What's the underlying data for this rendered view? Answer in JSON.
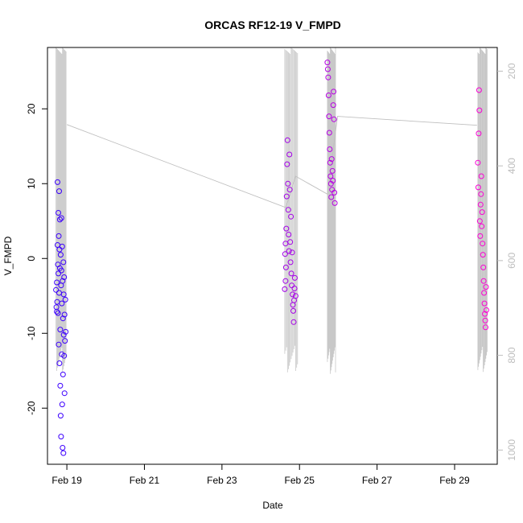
{
  "chart_data": {
    "type": "scatter",
    "title": "ORCAS RF12-19 V_FMPD",
    "xlabel": "Date",
    "ylabel": "V_FMPD",
    "x_range_days_feb": [
      18.5,
      30.1
    ],
    "ylim": [
      -27.5,
      28.2
    ],
    "y_ticks": [
      -20,
      -10,
      0,
      10,
      20
    ],
    "y_tick_labels": [
      "-20",
      "-10",
      "0",
      "10",
      "20"
    ],
    "x_ticks": [
      19,
      21,
      23,
      25,
      27,
      29
    ],
    "x_tick_labels": [
      "Feb 19",
      "Feb 21",
      "Feb 23",
      "Feb 25",
      "Feb 27",
      "Feb 29"
    ],
    "right_axis": {
      "ylim": [
        1030,
        150
      ],
      "ticks": [
        200,
        400,
        600,
        800,
        1000
      ],
      "tick_labels": [
        "200",
        "400",
        "600",
        "800",
        "1000"
      ],
      "color": "#bdbdbd"
    },
    "pressure_line_color": "#c8c8c8",
    "point_color_start": "#3a00ff",
    "point_color_end": "#ff00d4",
    "flights": [
      {
        "t0": 18.72,
        "t1": 18.98,
        "pts": [
          [
            18.72,
            -4.2
          ],
          [
            18.73,
            -6.5
          ],
          [
            18.74,
            -7.1
          ],
          [
            18.74,
            -3.2
          ],
          [
            18.75,
            -5.8
          ],
          [
            18.76,
            1.8
          ],
          [
            18.76,
            10.2
          ],
          [
            18.77,
            -0.8
          ],
          [
            18.77,
            -7.3
          ],
          [
            18.78,
            6.1
          ],
          [
            18.78,
            -2.0
          ],
          [
            18.79,
            3.0
          ],
          [
            18.79,
            -11.5
          ],
          [
            18.8,
            9.0
          ],
          [
            18.8,
            -4.6
          ],
          [
            18.81,
            1.2
          ],
          [
            18.81,
            -14.0
          ],
          [
            18.82,
            5.2
          ],
          [
            18.82,
            -1.3
          ],
          [
            18.83,
            -9.5
          ],
          [
            18.83,
            -17.0
          ],
          [
            18.84,
            0.5
          ],
          [
            18.84,
            -21.0
          ],
          [
            18.85,
            -3.6
          ],
          [
            18.85,
            -23.8
          ],
          [
            18.86,
            5.4
          ],
          [
            18.86,
            -1.6
          ],
          [
            18.87,
            -6.0
          ],
          [
            18.87,
            -12.8
          ],
          [
            18.88,
            1.6
          ],
          [
            18.88,
            -19.5
          ],
          [
            18.89,
            -3.0
          ],
          [
            18.89,
            -25.3
          ],
          [
            18.9,
            -8.0
          ],
          [
            18.9,
            -15.5
          ],
          [
            18.91,
            -0.5
          ],
          [
            18.91,
            -26.0
          ],
          [
            18.92,
            -10.2
          ],
          [
            18.92,
            -4.8
          ],
          [
            18.93,
            -13.0
          ],
          [
            18.93,
            -2.5
          ],
          [
            18.94,
            -18.0
          ],
          [
            18.94,
            -7.5
          ],
          [
            18.95,
            -11.0
          ],
          [
            18.96,
            -5.5
          ],
          [
            18.97,
            -9.8
          ]
        ]
      },
      {
        "t0": 24.62,
        "t1": 24.95,
        "pts": [
          [
            24.62,
            -4.1
          ],
          [
            24.63,
            0.6
          ],
          [
            24.64,
            2.0
          ],
          [
            24.64,
            -3.0
          ],
          [
            24.65,
            -1.2
          ],
          [
            24.66,
            4.0
          ],
          [
            24.67,
            8.3
          ],
          [
            24.68,
            12.6
          ],
          [
            24.69,
            15.8
          ],
          [
            24.7,
            10.0
          ],
          [
            24.71,
            6.5
          ],
          [
            24.72,
            3.2
          ],
          [
            24.73,
            1.0
          ],
          [
            24.74,
            13.9
          ],
          [
            24.75,
            9.2
          ],
          [
            24.76,
            2.2
          ],
          [
            24.77,
            -0.5
          ],
          [
            24.78,
            5.6
          ],
          [
            24.79,
            -2.0
          ],
          [
            24.8,
            -3.6
          ],
          [
            24.81,
            0.8
          ],
          [
            24.82,
            -4.8
          ],
          [
            24.83,
            -6.2
          ],
          [
            24.84,
            -7.0
          ],
          [
            24.85,
            -8.5
          ],
          [
            24.86,
            -5.6
          ],
          [
            24.87,
            -4.0
          ],
          [
            24.88,
            -2.6
          ],
          [
            24.9,
            -5.0
          ]
        ]
      },
      {
        "t0": 25.72,
        "t1": 25.93,
        "pts": [
          [
            25.72,
            26.2
          ],
          [
            25.73,
            25.3
          ],
          [
            25.74,
            24.2
          ],
          [
            25.75,
            21.8
          ],
          [
            25.76,
            19.0
          ],
          [
            25.77,
            16.8
          ],
          [
            25.78,
            14.6
          ],
          [
            25.79,
            12.8
          ],
          [
            25.8,
            11.0
          ],
          [
            25.81,
            10.0
          ],
          [
            25.82,
            8.2
          ],
          [
            25.83,
            13.3
          ],
          [
            25.84,
            9.2
          ],
          [
            25.85,
            11.7
          ],
          [
            25.86,
            10.4
          ],
          [
            25.87,
            20.5
          ],
          [
            25.88,
            22.3
          ],
          [
            25.89,
            18.6
          ],
          [
            25.9,
            8.8
          ],
          [
            25.91,
            7.4
          ]
        ]
      },
      {
        "t0": 29.6,
        "t1": 29.84,
        "pts": [
          [
            29.6,
            12.8
          ],
          [
            29.61,
            9.5
          ],
          [
            29.62,
            16.7
          ],
          [
            29.63,
            22.5
          ],
          [
            29.64,
            19.8
          ],
          [
            29.65,
            5.0
          ],
          [
            29.66,
            3.0
          ],
          [
            29.67,
            7.2
          ],
          [
            29.68,
            8.6
          ],
          [
            29.69,
            11.0
          ],
          [
            29.7,
            4.3
          ],
          [
            29.71,
            6.2
          ],
          [
            29.72,
            2.0
          ],
          [
            29.73,
            0.5
          ],
          [
            29.74,
            -1.2
          ],
          [
            29.75,
            -3.0
          ],
          [
            29.76,
            -4.6
          ],
          [
            29.77,
            -6.0
          ],
          [
            29.78,
            -7.4
          ],
          [
            29.79,
            -8.3
          ],
          [
            29.8,
            -9.2
          ],
          [
            29.81,
            -3.8
          ],
          [
            29.82,
            -6.9
          ]
        ]
      }
    ],
    "background_line": [
      [
        19.0,
        17.9
      ],
      [
        24.65,
        6.8
      ],
      [
        24.9,
        11.0
      ],
      [
        25.72,
        8.6
      ],
      [
        25.98,
        19.0
      ],
      [
        29.58,
        17.8
      ]
    ]
  }
}
